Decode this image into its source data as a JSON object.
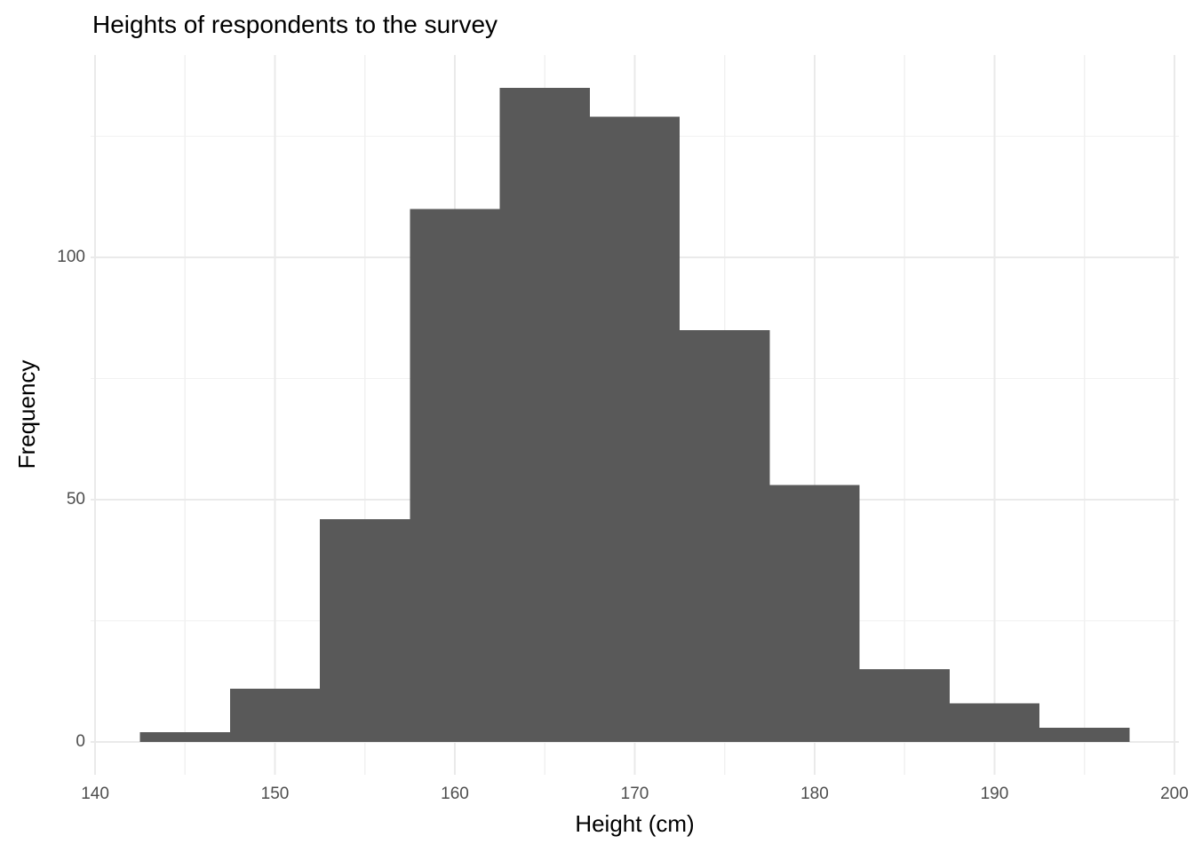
{
  "chart_data": {
    "type": "bar",
    "subtype": "histogram",
    "title": "Heights of respondents to the survey",
    "xlabel": "Height (cm)",
    "ylabel": "Frequency",
    "bin_width": 5,
    "bin_edges": [
      142.5,
      147.5,
      152.5,
      157.5,
      162.5,
      167.5,
      172.5,
      177.5,
      182.5,
      187.5,
      192.5,
      197.5
    ],
    "bin_centers": [
      145,
      150,
      155,
      160,
      165,
      170,
      175,
      180,
      185,
      190,
      195
    ],
    "values": [
      2,
      11,
      46,
      110,
      135,
      129,
      85,
      53,
      15,
      8,
      3
    ],
    "xlim": [
      139.75,
      200.25
    ],
    "ylim": [
      -6.75,
      141.75
    ],
    "x_major_ticks": [
      140,
      150,
      160,
      170,
      180,
      190,
      200
    ],
    "x_minor_gridlines": [
      145,
      155,
      165,
      175,
      185,
      195
    ],
    "y_major_ticks": [
      0,
      50,
      100
    ],
    "y_minor_gridlines": [
      25,
      75,
      125
    ],
    "grid": true,
    "legend": "none",
    "colors": {
      "bar_fill": "#595959",
      "background": "#FFFFFF",
      "grid_major": "#EAEAEA",
      "grid_minor": "#F1F1F1",
      "tick_label": "#4D4D4D",
      "axis_title": "#000000",
      "title": "#000000"
    }
  }
}
